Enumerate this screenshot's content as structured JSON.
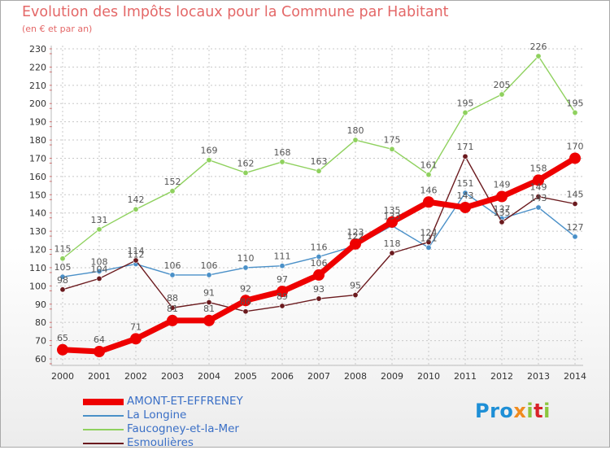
{
  "title": "Evolution des Impôts locaux pour la Commune par Habitant",
  "subtitle": "(en € et par an)",
  "logo_text": "Proxiti",
  "colors": {
    "title": "#e46868",
    "grid": "#c8c8c8",
    "axis_ticks": "#e05050"
  },
  "chart_data": {
    "type": "line",
    "title": "Evolution des Impôts locaux pour la Commune par Habitant",
    "subtitle": "(en € et par an)",
    "x": [
      "2000",
      "2001",
      "2002",
      "2003",
      "2004",
      "2005",
      "2006",
      "2007",
      "2008",
      "2009",
      "2010",
      "2011",
      "2012",
      "2013",
      "2014"
    ],
    "ylim": [
      60,
      230
    ],
    "yticks": [
      60,
      70,
      80,
      90,
      100,
      110,
      120,
      130,
      140,
      150,
      160,
      170,
      180,
      190,
      200,
      210,
      220,
      230
    ],
    "grid": true,
    "legend_position": "bottom-left",
    "series": [
      {
        "name": "AMONT-ET-EFFRENEY",
        "color": "#ee0000",
        "values": [
          65,
          64,
          71,
          81,
          81,
          92,
          97,
          106,
          123,
          135,
          146,
          143,
          149,
          158,
          170
        ],
        "labels": [
          "65",
          "64",
          "71",
          "81",
          "81",
          "92",
          "97",
          "106",
          "123",
          "135",
          "146",
          "143",
          "149",
          "158",
          "170"
        ]
      },
      {
        "name": "La Longine",
        "color": "#4a90c8",
        "values": [
          105,
          108,
          112,
          106,
          106,
          110,
          111,
          116,
          122,
          133,
          121,
          151,
          137,
          143,
          127
        ],
        "labels": [
          "105",
          "108",
          "112",
          "106",
          "106",
          "110",
          "111",
          "116",
          "122",
          "133",
          "121",
          "151",
          "137",
          "143",
          "127"
        ]
      },
      {
        "name": "Faucogney-et-la-Mer",
        "color": "#8fd15e",
        "values": [
          115,
          131,
          142,
          152,
          169,
          162,
          168,
          163,
          180,
          175,
          161,
          195,
          205,
          226,
          195
        ],
        "labels": [
          "115",
          "131",
          "142",
          "152",
          "169",
          "162",
          "168",
          "163",
          "180",
          "175",
          "161",
          "195",
          "205",
          "226",
          "195"
        ]
      },
      {
        "name": "Esmoulières",
        "color": "#6b1a1e",
        "values": [
          98,
          104,
          114,
          88,
          91,
          86,
          89,
          93,
          95,
          118,
          124,
          171,
          135,
          149,
          145
        ],
        "labels": [
          "98",
          "104",
          "114",
          "88",
          "91",
          "86",
          "89",
          "93",
          "95",
          "118",
          "124",
          "171",
          "135",
          "149",
          "145"
        ]
      }
    ]
  }
}
